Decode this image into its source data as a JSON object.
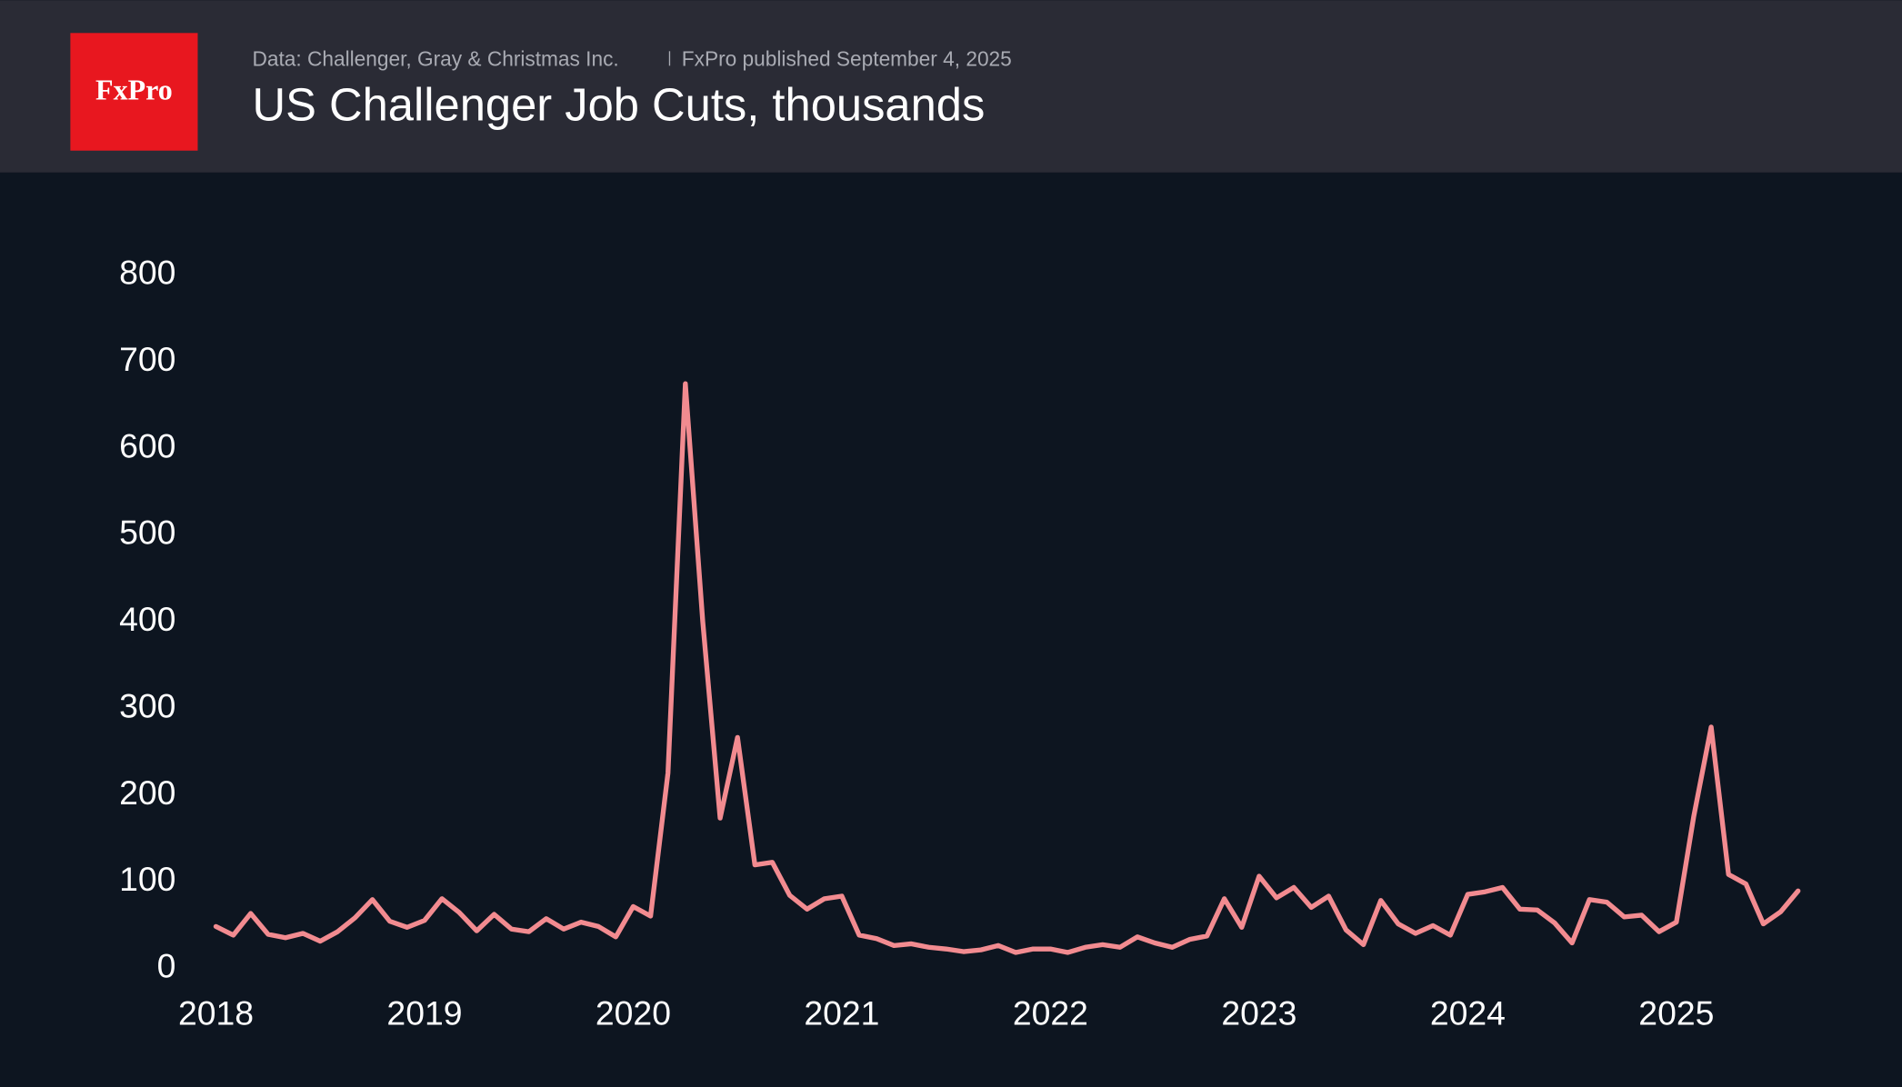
{
  "header": {
    "logo": "FxPro",
    "source": "Data: Challenger, Gray & Christmas Inc.",
    "published": "FxPro published September 4, 2025"
  },
  "chart_data": {
    "type": "line",
    "title": "US Challenger Job Cuts, thousands",
    "categories": [
      "2018",
      null,
      null,
      null,
      null,
      null,
      null,
      null,
      null,
      null,
      null,
      null,
      "2019",
      null,
      null,
      null,
      null,
      null,
      null,
      null,
      null,
      null,
      null,
      null,
      "2020",
      null,
      null,
      null,
      null,
      null,
      null,
      null,
      null,
      null,
      null,
      null,
      "2021",
      null,
      null,
      null,
      null,
      null,
      null,
      null,
      null,
      null,
      null,
      null,
      "2022",
      null,
      null,
      null,
      null,
      null,
      null,
      null,
      null,
      null,
      null,
      null,
      "2023",
      null,
      null,
      null,
      null,
      null,
      null,
      null,
      null,
      null,
      null,
      null,
      "2024",
      null,
      null,
      null,
      null,
      null,
      null,
      null,
      null,
      null,
      null,
      null,
      "2025",
      null,
      null,
      null,
      null,
      null,
      null,
      null
    ],
    "series": [
      {
        "name": "US Challenger Job Cuts",
        "color": "#f28b90",
        "values": [
          45,
          35,
          60,
          36,
          32,
          37,
          28,
          39,
          55,
          76,
          51,
          44,
          52,
          77,
          61,
          40,
          59,
          42,
          39,
          54,
          42,
          50,
          45,
          33,
          68,
          57,
          222,
          671,
          397,
          170,
          263,
          116,
          119,
          81,
          65,
          77,
          80,
          35,
          31,
          23,
          25,
          21,
          19,
          16,
          18,
          23,
          15,
          19,
          19,
          15,
          21,
          24,
          21,
          33,
          26,
          21,
          30,
          34,
          77,
          44,
          103,
          78,
          90,
          67,
          80,
          41,
          24,
          75,
          48,
          37,
          46,
          35,
          82,
          85,
          90,
          65,
          64,
          49,
          26,
          76,
          73,
          56,
          58,
          39,
          50,
          172,
          275,
          105,
          94,
          48,
          62,
          86
        ]
      }
    ],
    "ylim": [
      0,
      800
    ],
    "yticks": [
      0,
      100,
      200,
      300,
      400,
      500,
      600,
      700,
      800
    ],
    "grid": false
  }
}
